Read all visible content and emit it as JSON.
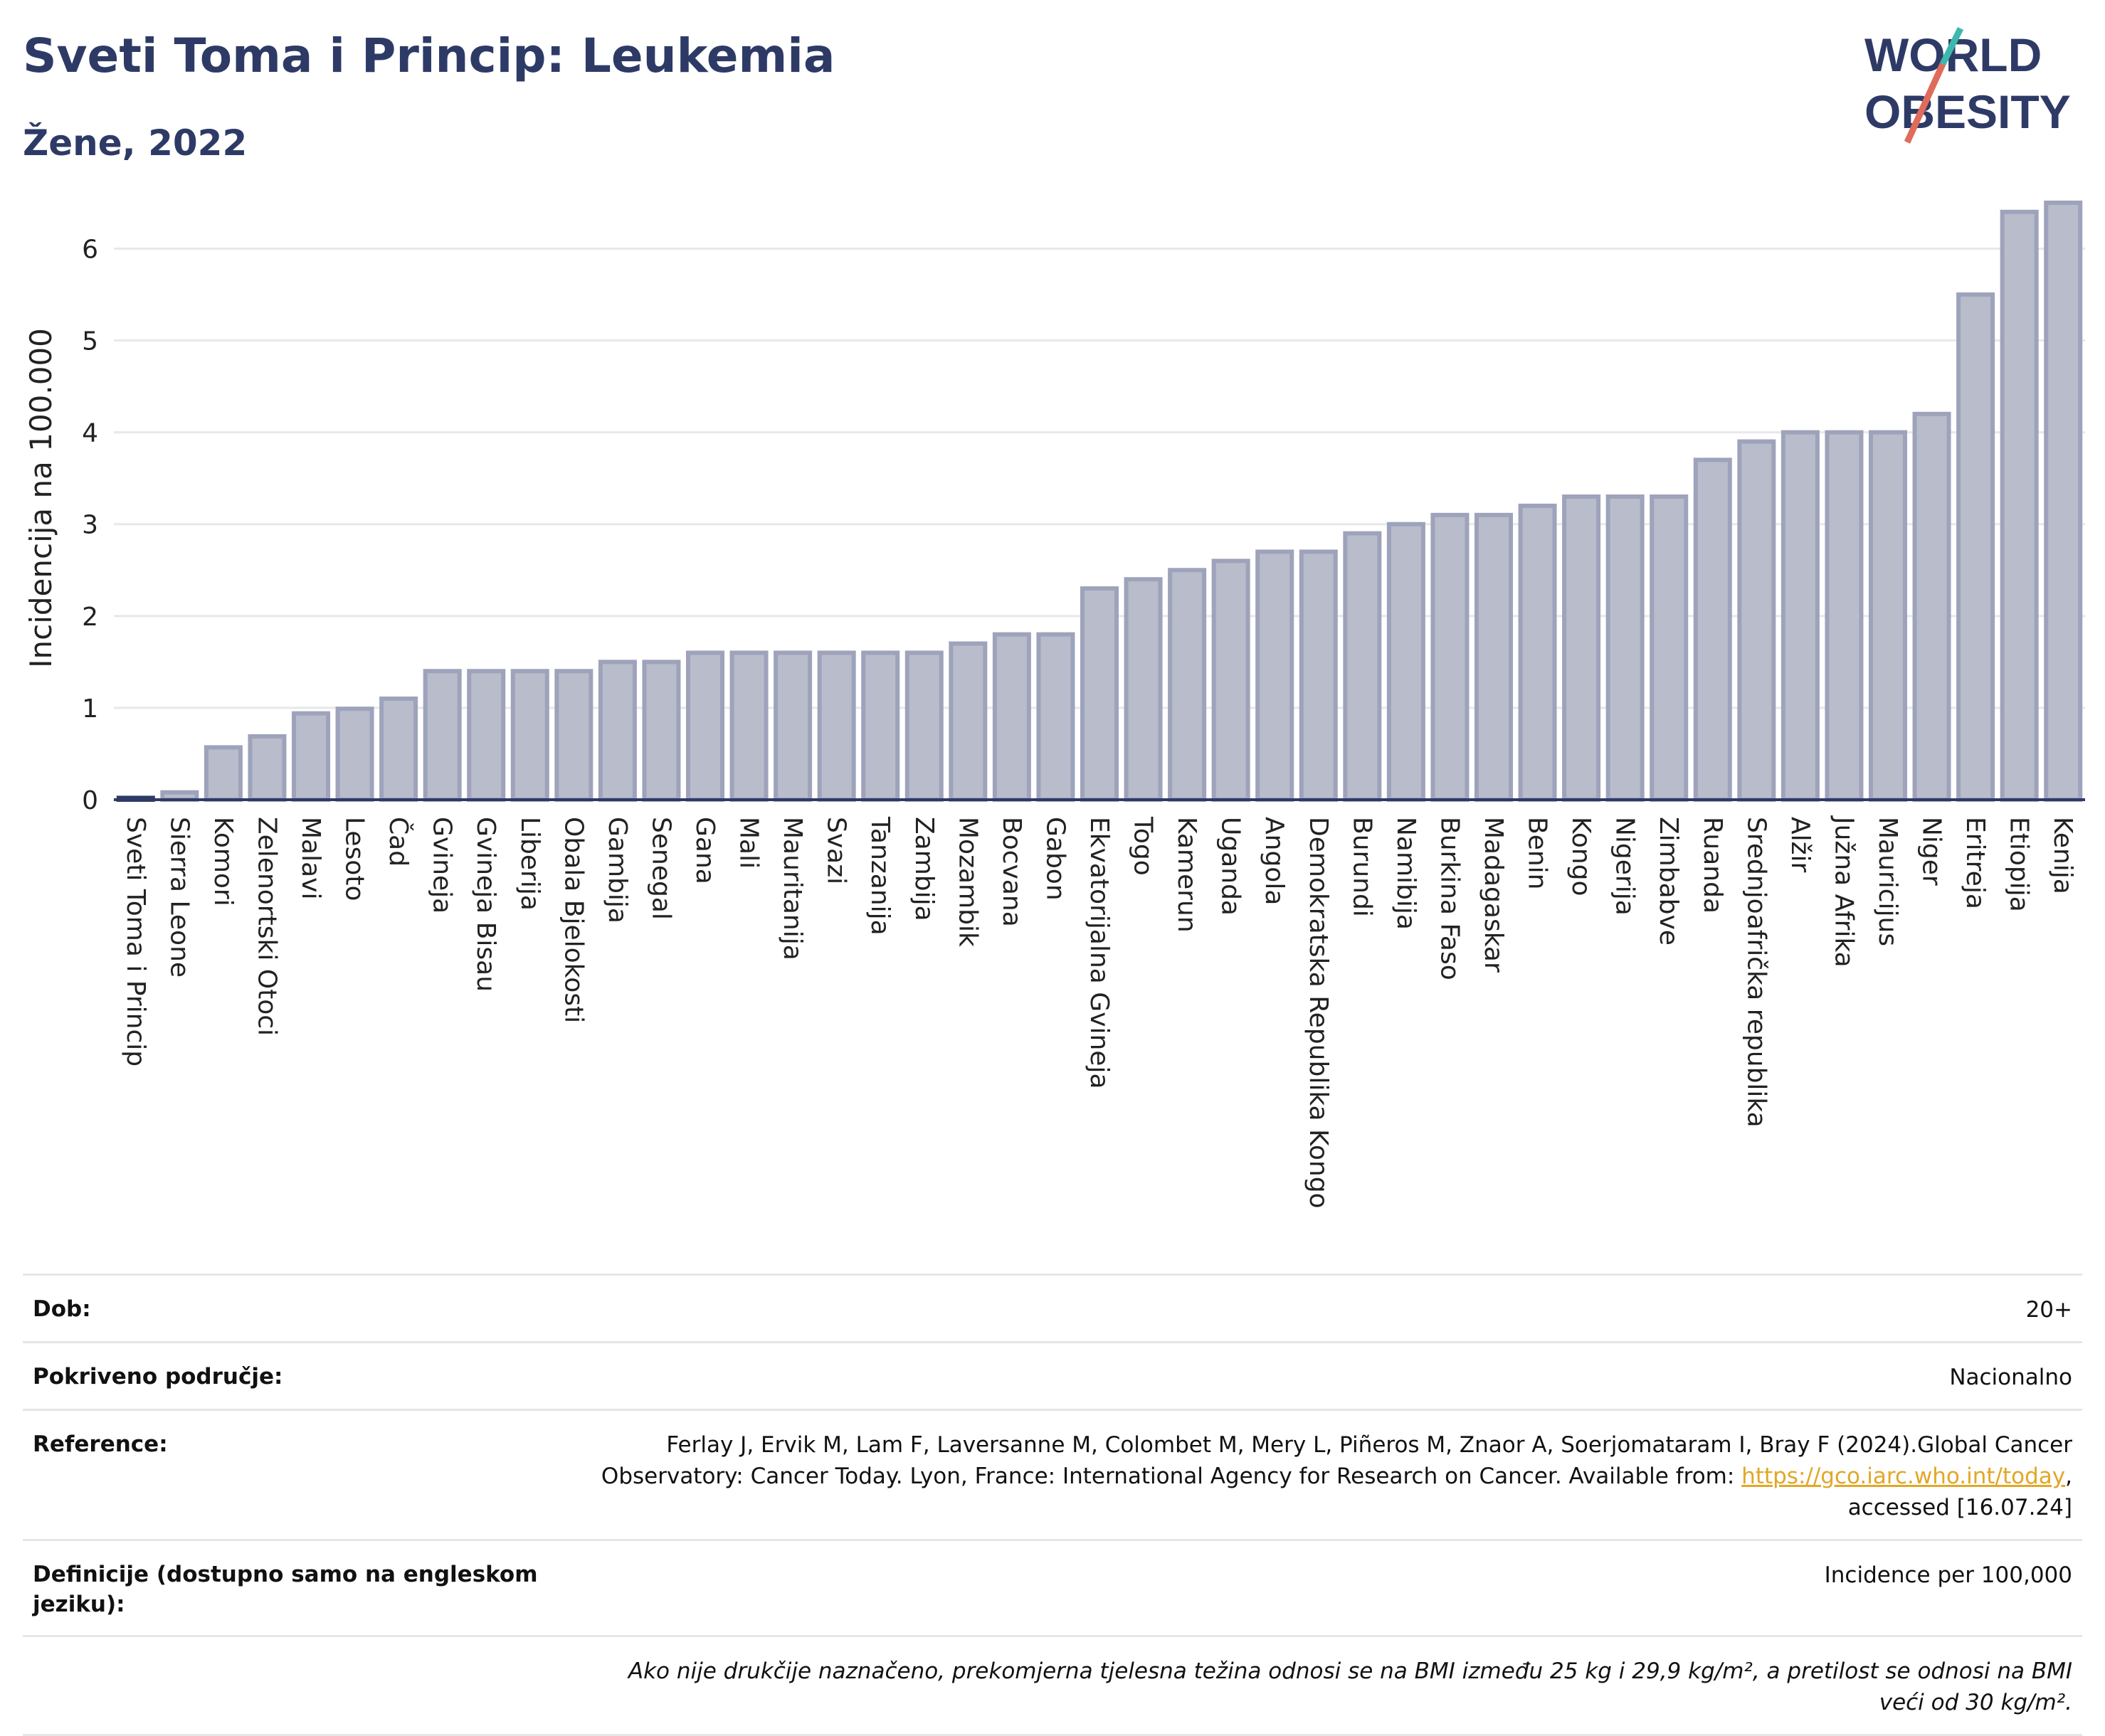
{
  "header": {
    "title": "Sveti Toma i Princip: Leukemia",
    "subtitle": "Žene, 2022",
    "logo_text": "WORLD OBESITY"
  },
  "colors": {
    "title": "#2e3a66",
    "bar_fill": "#b8bccb",
    "bar_stroke": "#9ea3bb",
    "highlight": "#2e3a66",
    "link": "#e1a726"
  },
  "chart_data": {
    "type": "bar",
    "title": "Sveti Toma i Princip: Leukemia",
    "subtitle": "Žene, 2022",
    "xlabel": "",
    "ylabel": "Incidencija na 100.000",
    "ylim": [
      0,
      6.6
    ],
    "yticks": [
      0,
      1,
      2,
      3,
      4,
      5,
      6
    ],
    "grid": true,
    "highlight_category": "Sveti Toma i Princip",
    "categories": [
      "Sveti Toma i Princip",
      "Sierra Leone",
      "Komori",
      "Zelenortski Otoci",
      "Malavi",
      "Lesoto",
      "Čad",
      "Gvineja",
      "Gvineja Bisau",
      "Liberija",
      "Obala Bjelokosti",
      "Gambija",
      "Senegal",
      "Gana",
      "Mali",
      "Mauritanija",
      "Svazi",
      "Tanzanija",
      "Zambija",
      "Mozambik",
      "Bocvana",
      "Gabon",
      "Ekvatorijalna Gvineja",
      "Togo",
      "Kamerun",
      "Uganda",
      "Angola",
      "Demokratska Republika Kongo",
      "Burundi",
      "Namibija",
      "Burkina Faso",
      "Madagaskar",
      "Benin",
      "Kongo",
      "Nigerija",
      "Zimbabve",
      "Ruanda",
      "Srednjoafrička republika",
      "Alžir",
      "Južna Afrika",
      "Mauricijus",
      "Niger",
      "Eritreja",
      "Etiopija",
      "Kenija"
    ],
    "values": [
      0.02,
      0.08,
      0.57,
      0.69,
      0.94,
      0.99,
      1.1,
      1.4,
      1.4,
      1.4,
      1.4,
      1.5,
      1.5,
      1.6,
      1.6,
      1.6,
      1.6,
      1.6,
      1.6,
      1.7,
      1.8,
      1.8,
      2.3,
      2.4,
      2.5,
      2.6,
      2.7,
      2.7,
      2.9,
      3.0,
      3.1,
      3.1,
      3.2,
      3.3,
      3.3,
      3.3,
      3.7,
      3.9,
      4.0,
      4.0,
      4.0,
      4.2,
      5.5,
      6.4,
      6.5
    ]
  },
  "info": {
    "dob_label": "Dob:",
    "dob_value": "20+",
    "area_label": "Pokriveno područje:",
    "area_value": "Nacionalno",
    "ref_label": "Reference:",
    "ref_text_1": "Ferlay J, Ervik M, Lam F, Laversanne M, Colombet M, Mery L, Piñeros M, Znaor A, Soerjomataram I, Bray F (2024).Global Cancer Observatory: Cancer Today. Lyon, France: International Agency for Research on Cancer. Available from: ",
    "ref_link": "https://gco.iarc.who.int/today",
    "ref_text_2": ", accessed [16.07.24]",
    "def_label": "Definicije (dostupno samo na engleskom jeziku):",
    "def_value": "Incidence per 100,000",
    "note": "Ako nije drukčije naznačeno, prekomjerna tjelesna težina odnosi se na BMI između 25 kg i 29,9 kg/m², a pretilost se odnosi na BMI veći od 30 kg/m²."
  }
}
